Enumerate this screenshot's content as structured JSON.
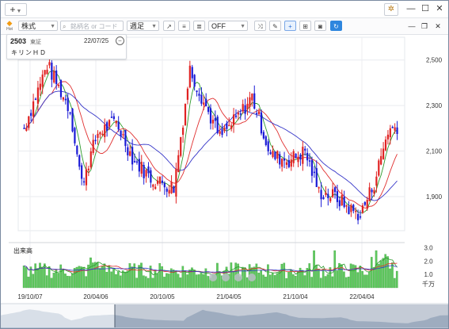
{
  "titlebar": {
    "add_label": "+",
    "settings_icon": "gear-icon"
  },
  "toolbar": {
    "logo_text": "Hot",
    "market_select": "株式",
    "search_placeholder": "銘柄名 or コード",
    "period_select": "週足",
    "indicator_select": "OFF"
  },
  "quote": {
    "code": "2503",
    "market": "東証",
    "date": "22/07/25",
    "name": "キリンＨＤ"
  },
  "y_axis": {
    "labels": [
      "2,500",
      "2,300",
      "2,100",
      "1,900"
    ]
  },
  "volume": {
    "label": "出来高",
    "labels": [
      "3.0",
      "2.0",
      "1.0"
    ],
    "unit": "千万"
  },
  "x_axis": {
    "labels": [
      "19/10/07",
      "20/04/06",
      "20/10/05",
      "21/04/05",
      "21/10/04",
      "22/04/04"
    ]
  },
  "colors": {
    "up": "#e02222",
    "down": "#1b1bd6",
    "ma_short": "#2d9a2d",
    "ma_mid": "#e03030",
    "ma_long": "#3535c8",
    "volume": "#5ec95e"
  },
  "chart_data": {
    "type": "candlestick",
    "ylim": [
      1750,
      2600
    ],
    "ticks": [
      2500,
      2300,
      2100,
      1900
    ],
    "anchors": [
      {
        "week": 0,
        "price": 2200
      },
      {
        "week": 10,
        "price": 2480
      },
      {
        "week": 20,
        "price": 2280
      },
      {
        "week": 25,
        "price": 1960
      },
      {
        "week": 32,
        "price": 2180
      },
      {
        "week": 40,
        "price": 2230
      },
      {
        "week": 47,
        "price": 2070
      },
      {
        "week": 55,
        "price": 1980
      },
      {
        "week": 65,
        "price": 1940
      },
      {
        "week": 72,
        "price": 2460
      },
      {
        "week": 80,
        "price": 2270
      },
      {
        "week": 85,
        "price": 2160
      },
      {
        "week": 93,
        "price": 2250
      },
      {
        "week": 99,
        "price": 2340
      },
      {
        "week": 107,
        "price": 2080
      },
      {
        "week": 115,
        "price": 2060
      },
      {
        "week": 122,
        "price": 2100
      },
      {
        "week": 128,
        "price": 1920
      },
      {
        "week": 135,
        "price": 1900
      },
      {
        "week": 142,
        "price": 1840
      },
      {
        "week": 146,
        "price": 1820
      },
      {
        "week": 152,
        "price": 1960
      },
      {
        "week": 158,
        "price": 2190
      },
      {
        "week": 162,
        "price": 2210
      }
    ]
  }
}
